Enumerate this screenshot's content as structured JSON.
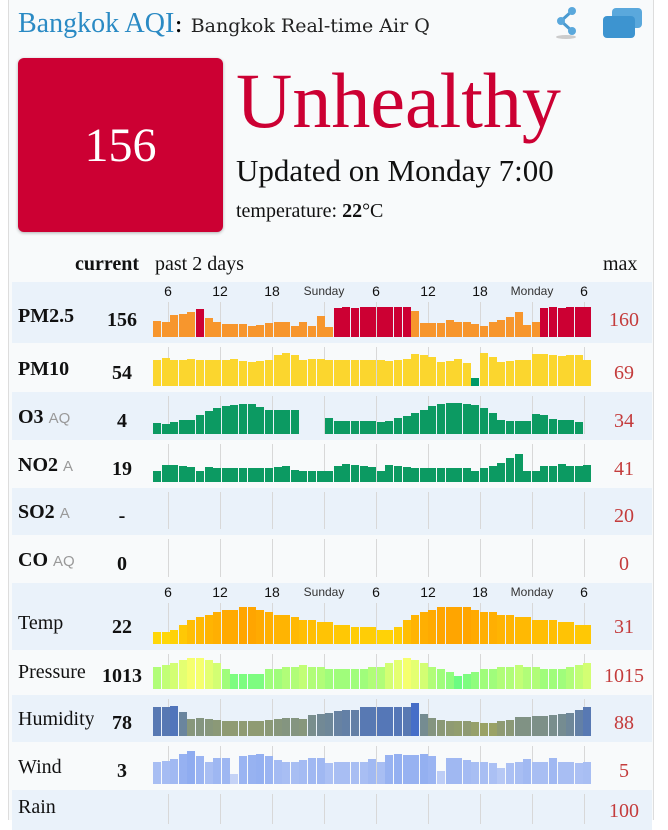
{
  "header": {
    "city": "Bangkok AQI",
    "colon": ":",
    "subtitle": "Bangkok Real-time Air Q"
  },
  "icons": {
    "share": "share-icon",
    "windows": "windows-icon"
  },
  "summary": {
    "aqi": "156",
    "status": "Unhealthy",
    "updated": "Updated on Monday 7:00",
    "temp_label": "temperature: ",
    "temp_value": "22",
    "temp_unit": "°C",
    "status_color": "#cc0033"
  },
  "table": {
    "current": "current",
    "past": "past 2 days",
    "max": "max"
  },
  "axis": [
    "6",
    "12",
    "18",
    "Sunday",
    "6",
    "12",
    "18",
    "Monday",
    "6"
  ],
  "rows": [
    {
      "id": "pm25",
      "label": "PM2.5",
      "aq": "",
      "current": "156",
      "max": "160",
      "range": [
        80,
        160
      ],
      "values": [
        117,
        114,
        134,
        138,
        141,
        152,
        125,
        114,
        106,
        106,
        106,
        100,
        104,
        109,
        113,
        114,
        102,
        114,
        102,
        131,
        98,
        155,
        156,
        155,
        156,
        157,
        156,
        156,
        156,
        156,
        144,
        110,
        110,
        110,
        118,
        113,
        113,
        106,
        102,
        114,
        120,
        127,
        143,
        103,
        112,
        155,
        156,
        154,
        157,
        158,
        157
      ]
    },
    {
      "id": "pm10",
      "label": "PM10",
      "aq": "",
      "current": "54",
      "max": "69",
      "range": [
        20,
        69
      ],
      "values": [
        55,
        58,
        54,
        54,
        56,
        55,
        54,
        55,
        55,
        56,
        53,
        52,
        53,
        55,
        62,
        66,
        62,
        55,
        57,
        57,
        54,
        55,
        55,
        55,
        55,
        54,
        55,
        53,
        54,
        57,
        64,
        62,
        60,
        52,
        53,
        56,
        50,
        26,
        66,
        60,
        52,
        53,
        54,
        55,
        64,
        65,
        63,
        61,
        63,
        62,
        55
      ]
    },
    {
      "id": "o3",
      "label": "O3",
      "aq": "AQ",
      "current": "4",
      "max": "34",
      "range": [
        0,
        34
      ],
      "values": [
        8,
        7,
        9,
        11,
        11,
        17,
        21,
        25,
        27,
        28,
        30,
        29,
        26,
        23,
        23,
        23,
        23,
        null,
        null,
        null,
        14,
        10,
        10,
        10,
        10,
        10,
        9,
        10,
        13,
        16,
        19,
        23,
        27,
        30,
        31,
        31,
        30,
        28,
        25,
        19,
        11,
        10,
        10,
        10,
        18,
        17,
        12,
        11,
        11,
        9,
        null
      ]
    },
    {
      "id": "no2",
      "label": "NO2",
      "aq": "A",
      "current": "19",
      "max": "41",
      "range": [
        0,
        41
      ],
      "values": [
        9,
        18,
        18,
        16,
        15,
        9,
        15,
        14,
        13,
        13,
        13,
        13,
        14,
        14,
        15,
        16,
        11,
        10,
        10,
        10,
        10,
        16,
        19,
        18,
        16,
        15,
        10,
        18,
        16,
        15,
        14,
        14,
        14,
        13,
        13,
        13,
        13,
        10,
        13,
        16,
        21,
        27,
        33,
        10,
        10,
        17,
        16,
        19,
        17,
        16,
        18
      ]
    },
    {
      "id": "so2",
      "label": "SO2",
      "aq": "A",
      "current": "-",
      "max": "20",
      "range": [
        0,
        20
      ],
      "values": []
    },
    {
      "id": "co",
      "label": "CO",
      "aq": "AQ",
      "current": "0",
      "max": "0",
      "range": [
        0,
        1
      ],
      "values": []
    },
    {
      "id": "temp",
      "label": "Temp",
      "aq": "",
      "current": "22",
      "max": "31",
      "range": [
        18,
        31
      ],
      "values": [
        21,
        21,
        22,
        24,
        26,
        27,
        28,
        29,
        30,
        30,
        31,
        31,
        30,
        29,
        28,
        28,
        27,
        26,
        26,
        25,
        25,
        24,
        24,
        23,
        23,
        23,
        22,
        22,
        23,
        26,
        28,
        29,
        30,
        31,
        31,
        31,
        31,
        30,
        29,
        29,
        28,
        28,
        27,
        27,
        26,
        26,
        26,
        25,
        25,
        24,
        24
      ]
    },
    {
      "id": "pressure",
      "label": "Pressure",
      "aq": "",
      "current": "1013",
      "max": "1015",
      "range": [
        1009,
        1015
      ],
      "values": [
        1013,
        1013.5,
        1014,
        1014.5,
        1015,
        1015,
        1014.5,
        1014,
        1012.5,
        1011.5,
        1011.5,
        1011.5,
        1011.5,
        1012.5,
        1012.5,
        1013,
        1013,
        1013.5,
        1013,
        1013,
        1012.5,
        1012.5,
        1012.5,
        1012.5,
        1012.5,
        1013,
        1013,
        1014,
        1014.5,
        1015,
        1014.5,
        1014,
        1013,
        1012.5,
        1012,
        1011,
        1011.5,
        1012,
        1012.5,
        1012.5,
        1013,
        1013,
        1013.5,
        1013,
        1013,
        1012.5,
        1012.5,
        1012.5,
        1013,
        1013.5,
        1014
      ]
    },
    {
      "id": "humidity",
      "label": "Humidity",
      "aq": "",
      "current": "78",
      "max": "88",
      "range": [
        55,
        88
      ],
      "values": [
        83,
        83,
        85,
        78,
        70,
        71,
        70,
        69,
        68,
        68,
        68,
        68,
        68,
        69,
        70,
        71,
        71,
        70,
        74,
        76,
        77,
        79,
        80,
        80,
        83,
        83,
        84,
        84,
        84,
        83,
        88,
        75,
        71,
        69,
        68,
        67,
        68,
        66,
        65,
        65,
        68,
        69,
        72,
        72,
        73,
        73,
        74,
        75,
        77,
        80,
        83
      ]
    },
    {
      "id": "wind",
      "label": "Wind",
      "aq": "",
      "current": "3",
      "max": "5",
      "range": [
        0,
        5
      ],
      "values": [
        3,
        3.2,
        3.5,
        4.3,
        4.8,
        4,
        3,
        3.7,
        3.7,
        1,
        4,
        4.2,
        4.4,
        4,
        3.3,
        3,
        3,
        3.3,
        3.6,
        3.6,
        2.8,
        3,
        3,
        3,
        3,
        3.5,
        3,
        4.2,
        4.4,
        4.2,
        4.2,
        4.4,
        4,
        1.5,
        3.6,
        3.6,
        3.3,
        3,
        3,
        2.8,
        2,
        2.8,
        3,
        3.5,
        3,
        3,
        3.6,
        3,
        3,
        2.8,
        3
      ]
    },
    {
      "id": "rain",
      "label": "Rain",
      "aq": "",
      "current": "",
      "max": "100",
      "range": [
        0,
        100
      ],
      "values": []
    }
  ]
}
